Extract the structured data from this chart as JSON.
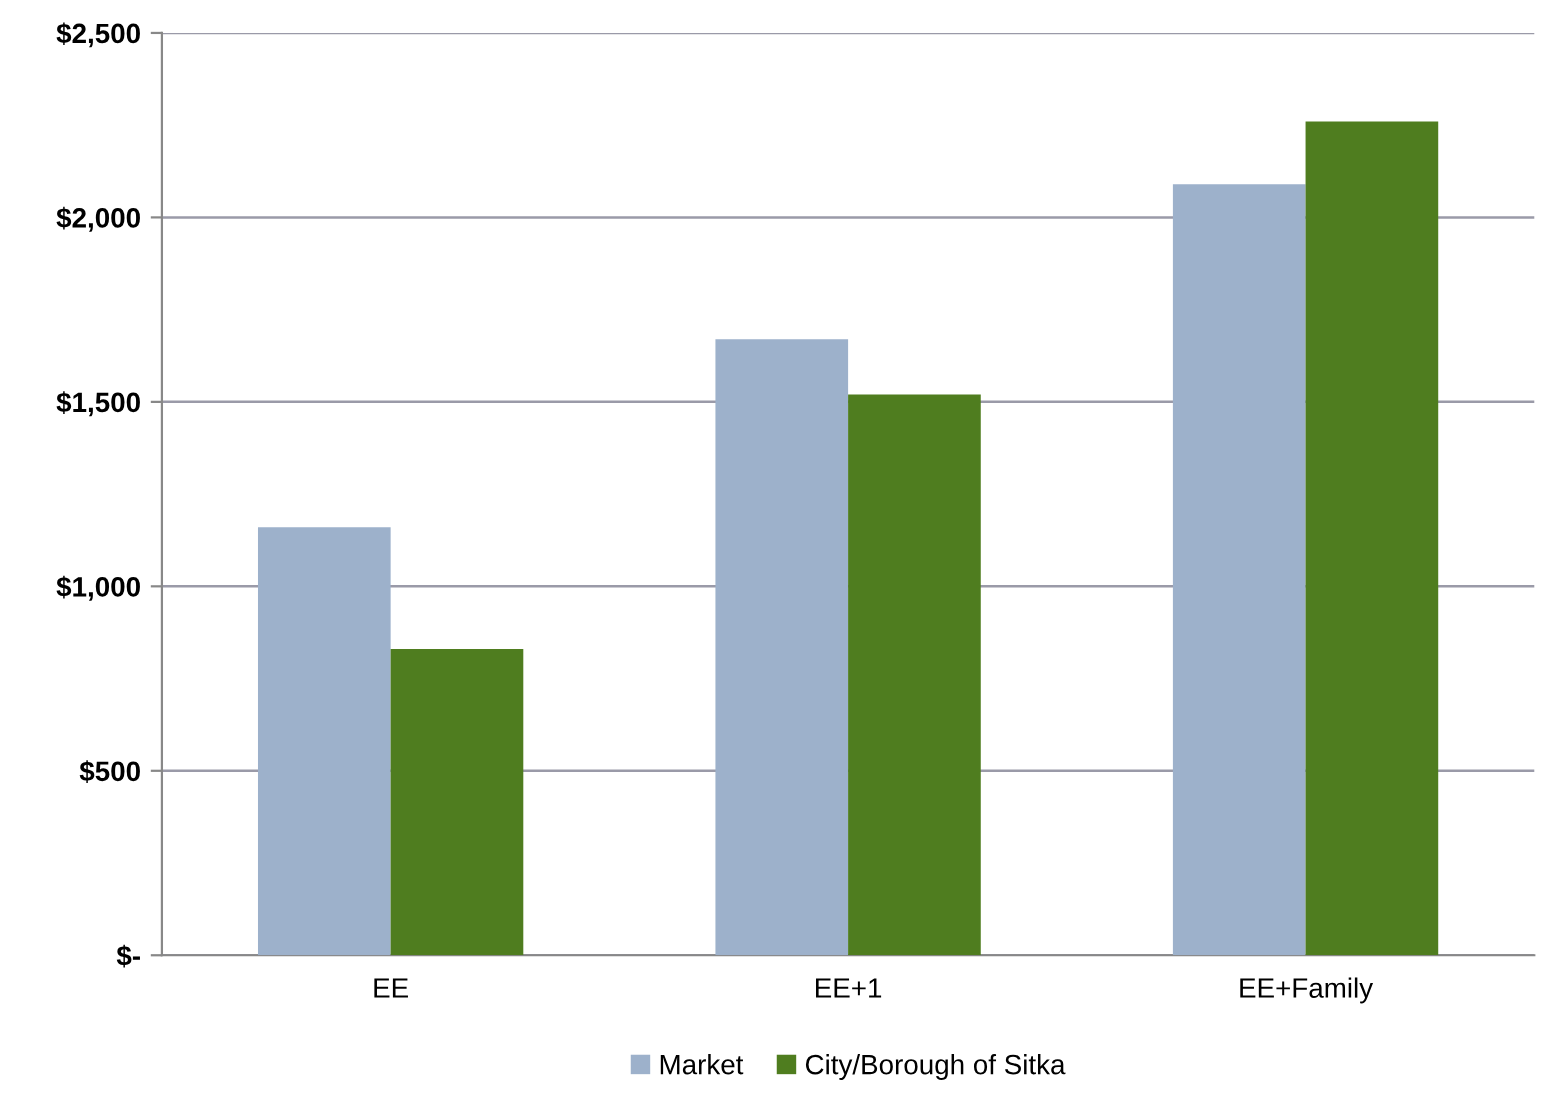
{
  "chart_data": {
    "type": "bar",
    "categories": [
      "EE",
      "EE+1",
      "EE+Family"
    ],
    "series": [
      {
        "name": "Market",
        "color": "#9db1cb",
        "values": [
          1160,
          1670,
          2090
        ]
      },
      {
        "name": "City/Borough of Sitka",
        "color": "#4f7d1f",
        "values": [
          830,
          1520,
          2260
        ]
      }
    ],
    "ylim": [
      0,
      2500
    ],
    "yticks": [
      {
        "value": 0,
        "label": "$-"
      },
      {
        "value": 500,
        "label": "$500"
      },
      {
        "value": 1000,
        "label": "$1,000"
      },
      {
        "value": 1500,
        "label": "$1,500"
      },
      {
        "value": 2000,
        "label": "$2,000"
      },
      {
        "value": 2500,
        "label": "$2,500"
      }
    ],
    "grid": "y",
    "legend": "bottom"
  }
}
